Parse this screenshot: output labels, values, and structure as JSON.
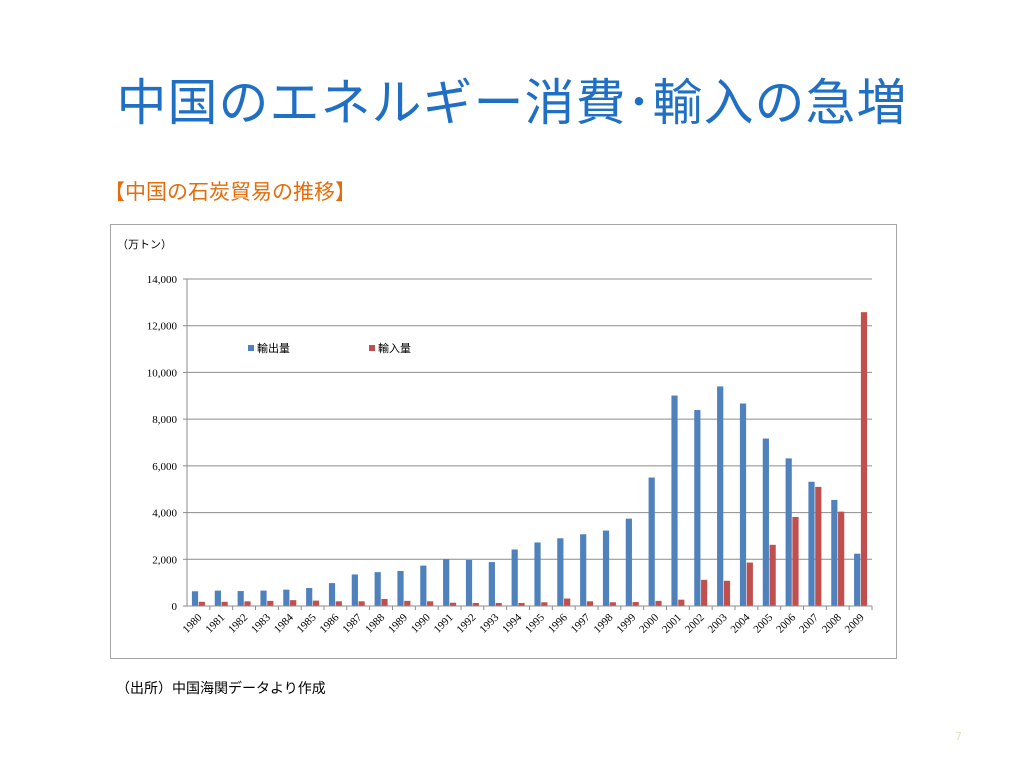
{
  "title": "中国のエネルギー消費･輸入の急増",
  "subtitle": "【中国の石炭貿易の推移】",
  "source": "（出所）中国海関データより作成",
  "page_number": "7",
  "colors": {
    "title": "#1f6fc5",
    "subtitle": "#e46c0a",
    "export": "#4f81bd",
    "import": "#c0504d"
  },
  "chart_data": {
    "type": "bar",
    "unit_label": "（万トン）",
    "ylim": [
      0,
      14000
    ],
    "yticks": [
      "0",
      "2,000",
      "4,000",
      "6,000",
      "8,000",
      "10,000",
      "12,000",
      "14,000"
    ],
    "grid": true,
    "legend_position": "top-left",
    "categories": [
      "1980",
      "1981",
      "1982",
      "1983",
      "1984",
      "1985",
      "1986",
      "1987",
      "1988",
      "1989",
      "1990",
      "1991",
      "1992",
      "1993",
      "1994",
      "1995",
      "1996",
      "1997",
      "1998",
      "1999",
      "2000",
      "2001",
      "2002",
      "2003",
      "2004",
      "2005",
      "2006",
      "2007",
      "2008",
      "2009"
    ],
    "series": [
      {
        "name": "輸出量",
        "color": "#4f81bd",
        "values": [
          630,
          660,
          640,
          660,
          700,
          770,
          980,
          1350,
          1450,
          1500,
          1730,
          2000,
          1970,
          1880,
          2420,
          2720,
          2900,
          3070,
          3230,
          3740,
          5500,
          9010,
          8390,
          9400,
          8670,
          7170,
          6320,
          5320,
          4540,
          2240
        ]
      },
      {
        "name": "輸入量",
        "color": "#c0504d",
        "values": [
          180,
          180,
          200,
          220,
          250,
          230,
          200,
          200,
          300,
          220,
          200,
          140,
          130,
          130,
          130,
          160,
          320,
          200,
          160,
          170,
          220,
          270,
          1120,
          1080,
          1860,
          2620,
          3810,
          5100,
          4040,
          12580
        ]
      }
    ]
  }
}
